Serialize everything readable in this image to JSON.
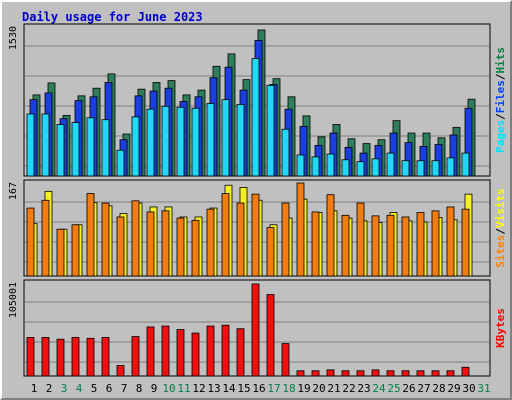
{
  "chart_data": [
    {
      "type": "bar",
      "title": "Daily usage for June 2023",
      "max_label": "1530",
      "ylim": [
        0,
        1530
      ],
      "grid": true,
      "categories": [
        "1",
        "2",
        "3",
        "4",
        "5",
        "6",
        "7",
        "8",
        "9",
        "10",
        "11",
        "12",
        "13",
        "14",
        "15",
        "16",
        "17",
        "18",
        "19",
        "20",
        "21",
        "22",
        "23",
        "24",
        "25",
        "26",
        "27",
        "28",
        "29",
        "30",
        "31"
      ],
      "legend": [
        {
          "label": "Hits",
          "color": "#008040"
        },
        {
          "label": "Files",
          "color": "#0040ff"
        },
        {
          "label": "Pages",
          "color": "#00e0ff"
        }
      ],
      "series": [
        {
          "name": "Hits",
          "color": "#2e7d5b",
          "values": [
            850,
            975,
            635,
            840,
            920,
            1070,
            440,
            910,
            980,
            1000,
            850,
            900,
            1150,
            1280,
            1010,
            1530,
            1020,
            830,
            630,
            410,
            540,
            390,
            340,
            380,
            580,
            450,
            450,
            400,
            510,
            805,
            null
          ]
        },
        {
          "name": "Files",
          "color": "#1a3ee0",
          "values": [
            800,
            870,
            600,
            790,
            830,
            980,
            380,
            840,
            890,
            920,
            780,
            830,
            1030,
            1140,
            900,
            1420,
            960,
            700,
            520,
            320,
            450,
            300,
            240,
            320,
            450,
            350,
            310,
            330,
            430,
            710,
            null
          ]
        },
        {
          "name": "Pages",
          "color": "#22d8f8",
          "values": [
            650,
            650,
            540,
            560,
            610,
            590,
            270,
            620,
            700,
            730,
            720,
            710,
            760,
            800,
            750,
            1230,
            950,
            490,
            220,
            200,
            230,
            170,
            150,
            180,
            240,
            160,
            160,
            160,
            190,
            240,
            null
          ]
        }
      ]
    },
    {
      "type": "bar",
      "max_label": "167",
      "ylim": [
        0,
        167
      ],
      "grid": true,
      "legend": [
        {
          "label": "Visits",
          "color": "#ffff00"
        },
        {
          "label": "Sites",
          "color": "#ff8000"
        }
      ],
      "series": [
        {
          "name": "Visits",
          "color": "#f5f025",
          "values": [
            94,
            152,
            84,
            92,
            132,
            126,
            112,
            131,
            124,
            124,
            106,
            106,
            122,
            163,
            159,
            136,
            92,
            104,
            138,
            114,
            117,
            104,
            99,
            96,
            114,
            99,
            97,
            105,
            101,
            147,
            null
          ]
        },
        {
          "name": "Sites",
          "color": "#f07c12",
          "values": [
            122,
            136,
            84,
            92,
            148,
            131,
            106,
            135,
            115,
            117,
            104,
            100,
            120,
            148,
            131,
            147,
            87,
            131,
            167,
            115,
            146,
            109,
            131,
            108,
            109,
            106,
            114,
            117,
            124,
            120,
            null
          ]
        }
      ]
    },
    {
      "type": "bar",
      "max_label": "105001",
      "ylim": [
        0,
        105001
      ],
      "grid": true,
      "legend": [
        {
          "label": "KBytes",
          "color": "#ff0000"
        }
      ],
      "series": [
        {
          "name": "KBytes",
          "color": "#f01010",
          "values": [
            44000,
            44000,
            42000,
            44000,
            43000,
            44000,
            12000,
            45000,
            56000,
            57000,
            53000,
            49000,
            57000,
            58000,
            54000,
            105001,
            93000,
            37000,
            6000,
            6000,
            7000,
            6000,
            6000,
            7000,
            6000,
            6000,
            6000,
            6000,
            6000,
            10000,
            null
          ]
        }
      ]
    }
  ],
  "x_axis": {
    "labels": [
      "1",
      "2",
      "3",
      "4",
      "5",
      "6",
      "7",
      "8",
      "9",
      "10",
      "11",
      "12",
      "13",
      "14",
      "15",
      "16",
      "17",
      "18",
      "19",
      "20",
      "21",
      "22",
      "23",
      "24",
      "25",
      "26",
      "27",
      "28",
      "29",
      "30",
      "31"
    ],
    "weekend_days": [
      "3",
      "4",
      "10",
      "11",
      "17",
      "18",
      "24",
      "25",
      "31"
    ],
    "weekday_color": "#000000",
    "weekend_color": "#00804a"
  }
}
